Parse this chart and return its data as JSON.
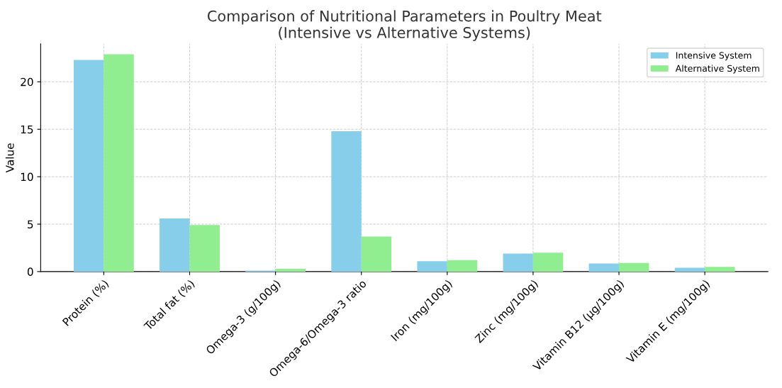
{
  "chart_data": {
    "type": "bar",
    "title": "Comparison of Nutritional Parameters in Poultry Meat\n(Intensive vs Alternative Systems)",
    "ylabel": "Value",
    "categories": [
      "Protein (%)",
      "Total fat (%)",
      "Omega-3 (g/100g)",
      "Omega-6/Omega-3 ratio",
      "Iron (mg/100g)",
      "Zinc (mg/100g)",
      "Vitamin B12 (µg/100g)",
      "Vitamin E (mg/100g)"
    ],
    "series": [
      {
        "name": "Intensive System",
        "color": "#87ceeb",
        "values": [
          22.3,
          5.6,
          0.1,
          14.8,
          1.1,
          1.9,
          0.85,
          0.4
        ]
      },
      {
        "name": "Alternative System",
        "color": "#90ee90",
        "values": [
          22.9,
          4.9,
          0.3,
          3.7,
          1.2,
          2.0,
          0.9,
          0.5
        ]
      }
    ],
    "ylim": [
      0,
      24
    ],
    "yticks": [
      0,
      5,
      10,
      15,
      20
    ],
    "grid": true,
    "legend": "top right"
  }
}
